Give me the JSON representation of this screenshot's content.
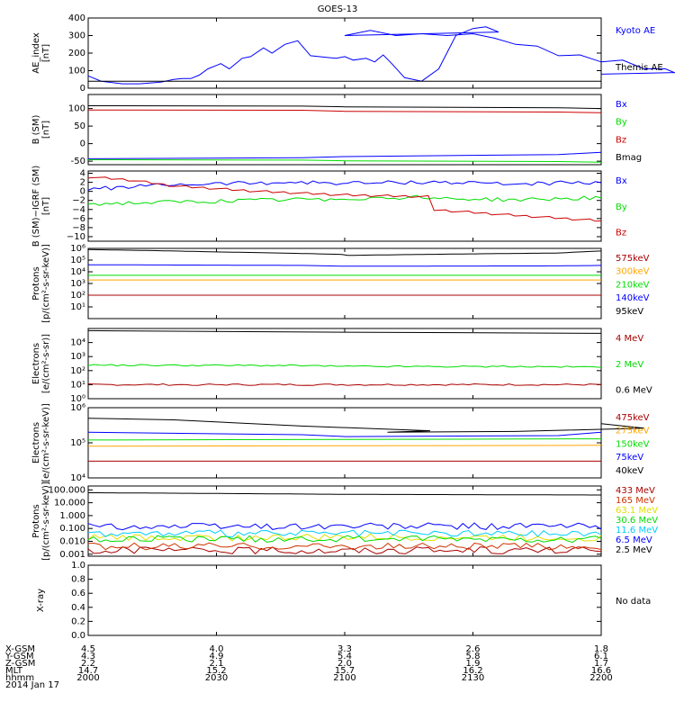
{
  "title": "GOES-13",
  "colors": {
    "black": "#000000",
    "blue": "#0000ff",
    "red": "#cc0000",
    "green": "#00dd00",
    "orange": "#ffa500",
    "cyan": "#00ccff",
    "yellow": "#e0e000",
    "purple": "#9900cc",
    "darkred": "#aa0000"
  },
  "chart_data": [
    {
      "type": "line",
      "ylabel": "AE_index\n[nT]",
      "ylim": [
        0,
        400
      ],
      "yticks": [
        0,
        100,
        200,
        300,
        400
      ],
      "ytick_labels": [
        "0",
        "100",
        "200",
        "300",
        "400"
      ],
      "series": [
        {
          "name": "Kyoto AE",
          "color": "#0000ff",
          "x": [
            2000,
            2003,
            2008,
            2012,
            2017,
            2020,
            2022,
            2024,
            2026,
            2028,
            2030,
            2031,
            2033,
            2035,
            2036,
            2038,
            2041,
            2043,
            2046,
            2049,
            2052,
            2054,
            2056,
            2058,
            2060,
            2062,
            2065,
            2067,
            2069,
            2071,
            2074,
            2078,
            2082,
            2086,
            2090,
            2093,
            2096,
            2100,
            2106,
            2112,
            2118,
            2124,
            2130,
            2135,
            2140,
            2145,
            2150,
            2155,
            2160,
            2165,
            2170,
            2175,
            2180,
            2186,
            2190,
            2194,
            2198,
            2200
          ],
          "values": [
            70,
            40,
            25,
            25,
            35,
            50,
            55,
            55,
            75,
            110,
            130,
            140,
            110,
            150,
            170,
            180,
            230,
            200,
            250,
            270,
            185,
            180,
            175,
            170,
            180,
            160,
            170,
            150,
            190,
            140,
            60,
            40,
            110,
            300,
            340,
            350,
            320,
            300,
            330,
            300,
            310,
            300,
            310,
            285,
            250,
            240,
            185,
            190,
            150,
            160,
            110,
            110,
            60,
            90,
            130,
            120,
            100,
            80
          ]
        },
        {
          "name": "Themis AE",
          "color": "#000000",
          "x": [
            2000,
            2200
          ],
          "values": [
            40,
            40
          ]
        }
      ],
      "legend": [
        "Kyoto AE",
        "Themis AE"
      ]
    },
    {
      "type": "line",
      "ylabel": "B (SM)\n[nT]",
      "ylim": [
        -60,
        140
      ],
      "yticks": [
        -50,
        0,
        50,
        100
      ],
      "ytick_labels": [
        "-50",
        "0",
        "50",
        "100"
      ],
      "series": [
        {
          "name": "Bx",
          "color": "#0000ff",
          "x": [
            2000,
            2050,
            2100,
            2150,
            2200
          ],
          "values": [
            -43,
            -40,
            -37,
            -31,
            -25
          ]
        },
        {
          "name": "By",
          "color": "#00dd00",
          "x": [
            2000,
            2050,
            2100,
            2150,
            2200
          ],
          "values": [
            -46,
            -47,
            -49,
            -51,
            -53
          ]
        },
        {
          "name": "Bz",
          "color": "#cc0000",
          "x": [
            2000,
            2050,
            2100,
            2150,
            2200
          ],
          "values": [
            96,
            95,
            92,
            90,
            88
          ]
        },
        {
          "name": "Bmag",
          "color": "#000000",
          "x": [
            2000,
            2050,
            2100,
            2150,
            2200
          ],
          "values": [
            108,
            107,
            105,
            102,
            100
          ]
        }
      ],
      "legend": [
        "Bx",
        "By",
        "Bz",
        "Bmag"
      ]
    },
    {
      "type": "line",
      "ylabel": "B (SM)−IGRF (SM)\n[nT]",
      "ylim": [
        -11,
        4.5
      ],
      "yticks": [
        -10,
        -8,
        -6,
        -4,
        -2,
        0,
        2,
        4
      ],
      "ytick_labels": [
        "−10",
        "−8",
        "−6",
        "−4",
        "−2",
        "0",
        "2",
        "4"
      ],
      "series": [
        {
          "name": "Bx",
          "color": "#0000ff",
          "x": [
            2000,
            2010,
            2020,
            2030,
            2040,
            2050,
            2060,
            2070,
            2080,
            2090,
            2100,
            2110,
            2120,
            2130,
            2140,
            2150,
            2160,
            2170,
            2180,
            2190,
            2200
          ],
          "values": [
            0.5,
            1,
            1.5,
            1.7,
            1.9,
            2.0,
            1.8,
            1.9,
            2.1,
            1.8,
            1.6,
            1.7,
            1.9,
            2.0,
            1.6,
            1.9,
            1.7,
            1.8,
            1.9,
            1.7,
            1.8
          ]
        },
        {
          "name": "By",
          "color": "#00dd00",
          "x": [
            2000,
            2020,
            2040,
            2060,
            2080,
            2100,
            2120,
            2140,
            2160,
            2180,
            2200
          ],
          "values": [
            -2.8,
            -2.4,
            -2.0,
            -1.6,
            -1.2,
            -1.0,
            -1.5,
            -1.9,
            -1.4,
            -0.8,
            -0.2
          ]
        },
        {
          "name": "Bz",
          "color": "#cc0000",
          "x": [
            2000,
            2010,
            2020,
            2040,
            2060,
            2080,
            2100,
            2120,
            2140,
            2160,
            2180,
            2200
          ],
          "values": [
            3.2,
            2.5,
            1.2,
            0,
            -0.8,
            -1.2,
            -2.5,
            -4.0,
            -5.3,
            -6.5,
            -7.3,
            -8.1
          ]
        }
      ],
      "legend": [
        "Bx",
        "By",
        "Bz"
      ]
    },
    {
      "type": "line",
      "log": true,
      "ylabel": "Protons\n[p/(cm²-s-sr-keV)]",
      "ylim": [
        1,
        1000000
      ],
      "yticks": [
        10,
        100,
        1000,
        10000,
        100000,
        1000000
      ],
      "ytick_labels": [
        "10¹",
        "10²",
        "10³",
        "10⁴",
        "10⁵",
        "10⁶"
      ],
      "series": [
        {
          "name": "575keV",
          "color": "#aa0000",
          "x": [
            2000,
            2200
          ],
          "values": [
            100,
            100
          ]
        },
        {
          "name": "300keV",
          "color": "#ffa500",
          "x": [
            2000,
            2200
          ],
          "values": [
            2000,
            2000
          ]
        },
        {
          "name": "210keV",
          "color": "#00dd00",
          "x": [
            2000,
            2200
          ],
          "values": [
            5000,
            5000
          ]
        },
        {
          "name": "140keV",
          "color": "#0000ff",
          "x": [
            2000,
            2050,
            2100,
            2150,
            2200
          ],
          "values": [
            40000,
            35000,
            30000,
            32000,
            35000
          ]
        },
        {
          "name": "95keV",
          "color": "#000000",
          "x": [
            2000,
            2030,
            2060,
            2100,
            2150,
            2200
          ],
          "values": [
            800000,
            500000,
            300000,
            250000,
            400000,
            600000
          ]
        }
      ],
      "legend": [
        "575keV",
        "300keV",
        "210keV",
        "140keV",
        "95keV"
      ]
    },
    {
      "type": "line",
      "log": true,
      "ylabel": "Electrons\n[e/(cm²-s-sr)]",
      "ylim": [
        1,
        100000
      ],
      "yticks": [
        1,
        10,
        100,
        1000,
        10000
      ],
      "ytick_labels": [
        "10⁰",
        "10¹",
        "10²",
        "10³",
        "10⁴"
      ],
      "series": [
        {
          "name": "4 MeV",
          "color": "#aa0000",
          "x": [
            2000,
            2200
          ],
          "values": [
            10,
            10
          ]
        },
        {
          "name": "2 MeV",
          "color": "#00dd00",
          "x": [
            2000,
            2050,
            2100,
            2150,
            2200
          ],
          "values": [
            250,
            230,
            200,
            190,
            180
          ]
        },
        {
          "name": "0.6 MeV",
          "color": "#000000",
          "x": [
            2000,
            2100,
            2200
          ],
          "values": [
            70000,
            55000,
            45000
          ]
        }
      ],
      "legend": [
        "4 MeV",
        "2 MeV",
        "0.6 MeV"
      ]
    },
    {
      "type": "line",
      "log": true,
      "ylabel": "Electrons\n[e/(cm²-s-sr-keV)]",
      "ylim": [
        10000,
        1000000
      ],
      "yticks": [
        10000,
        100000,
        1000000
      ],
      "ytick_labels": [
        "10⁴",
        "10⁵",
        "10⁶"
      ],
      "series": [
        {
          "name": "475keV",
          "color": "#aa0000",
          "x": [
            2000,
            2200
          ],
          "values": [
            30000,
            30000
          ]
        },
        {
          "name": "275keV",
          "color": "#ffa500",
          "x": [
            2000,
            2200
          ],
          "values": [
            80000,
            85000
          ]
        },
        {
          "name": "150keV",
          "color": "#00dd00",
          "x": [
            2000,
            2200
          ],
          "values": [
            120000,
            130000
          ]
        },
        {
          "name": "75keV",
          "color": "#0000ff",
          "x": [
            2000,
            2050,
            2100,
            2150,
            2200
          ],
          "values": [
            200000,
            170000,
            150000,
            160000,
            200000
          ]
        },
        {
          "name": "40keV",
          "color": "#000000",
          "x": [
            2000,
            2020,
            2050,
            2080,
            2110,
            2140,
            2170,
            2200
          ],
          "values": [
            500000,
            450000,
            300000,
            220000,
            200000,
            210000,
            260000,
            350000
          ]
        }
      ],
      "legend": [
        "475keV",
        "275keV",
        "150keV",
        "75keV",
        "40keV"
      ]
    },
    {
      "type": "line",
      "log": true,
      "ylabel": "Protons\n[p/(cm²-s-sr-keV)]",
      "ylim": [
        0.0007,
        200
      ],
      "yticks": [
        0.001,
        0.01,
        0.1,
        1.0,
        10.0,
        100.0
      ],
      "ytick_labels": [
        "0.001",
        "0.010",
        "0.100",
        "1.000",
        "10.000",
        "100.000"
      ],
      "series": [
        {
          "name": "433 MeV",
          "color": "#aa0000",
          "x": [
            2000,
            2200
          ],
          "values": [
            0.002,
            0.002
          ]
        },
        {
          "name": "165 MeV",
          "color": "#cc3300",
          "x": [
            2000,
            2200
          ],
          "values": [
            0.004,
            0.004
          ]
        },
        {
          "name": "63.1 MeV",
          "color": "#e0e000",
          "x": [
            2000,
            2200
          ],
          "values": [
            0.02,
            0.02
          ]
        },
        {
          "name": "30.6 MeV",
          "color": "#00dd00",
          "x": [
            2000,
            2200
          ],
          "values": [
            0.015,
            0.015
          ]
        },
        {
          "name": "11.6 MeV",
          "color": "#00ccff",
          "x": [
            2000,
            2200
          ],
          "values": [
            0.04,
            0.04
          ]
        },
        {
          "name": "6.5 MeV",
          "color": "#0000ff",
          "x": [
            2000,
            2200
          ],
          "values": [
            0.15,
            0.15
          ]
        },
        {
          "name": "2.5 MeV",
          "color": "#000000",
          "x": [
            2000,
            2100,
            2200
          ],
          "values": [
            60,
            45,
            40
          ]
        }
      ],
      "legend": [
        "433 MeV",
        "165 MeV",
        "63.1 MeV",
        "30.6 MeV",
        "11.6 MeV",
        "6.5 MeV",
        "2.5 MeV"
      ]
    },
    {
      "type": "line",
      "ylabel": "X-ray",
      "ylim": [
        0,
        1
      ],
      "yticks": [
        0,
        0.2,
        0.4,
        0.6,
        0.8,
        1.0
      ],
      "ytick_labels": [
        "0.0",
        "0.2",
        "0.4",
        "0.6",
        "0.8",
        "1.0"
      ],
      "series": [],
      "legend": [],
      "note": "No data"
    }
  ],
  "xaxis": {
    "range": [
      2000,
      2200
    ],
    "ticks": [
      2000,
      2030,
      2100,
      2130,
      2200
    ],
    "rows": [
      {
        "label": "X-GSM",
        "values": [
          "4.5",
          "4.0",
          "3.3",
          "2.6",
          "1.8"
        ]
      },
      {
        "label": "Y-GSM",
        "values": [
          "4.3",
          "4.9",
          "5.4",
          "5.8",
          "6.1"
        ]
      },
      {
        "label": "Z-GSM",
        "values": [
          "2.2",
          "2.1",
          "2.0",
          "1.9",
          "1.7"
        ]
      },
      {
        "label": "MLT",
        "values": [
          "14.7",
          "15.2",
          "15.7",
          "16.2",
          "16.6"
        ]
      },
      {
        "label": "hhmm",
        "values": [
          "2000",
          "2030",
          "2100",
          "2130",
          "2200"
        ]
      }
    ],
    "date": "2014 Jan 17"
  }
}
